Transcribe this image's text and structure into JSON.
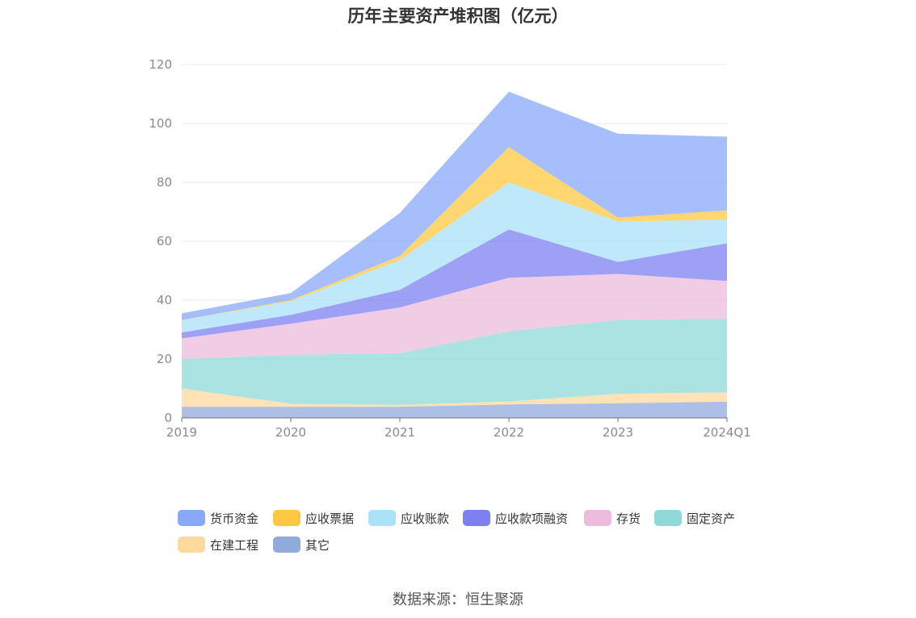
{
  "chart_data": {
    "type": "area",
    "stacked": true,
    "title": "历年主要资产堆积图（亿元）",
    "x": [
      "2019",
      "2020",
      "2021",
      "2022",
      "2023",
      "2024Q1"
    ],
    "ylim": [
      0,
      120
    ],
    "yticks": [
      "0",
      "20",
      "40",
      "60",
      "80",
      "100",
      "120"
    ],
    "grid": true,
    "legend_position": "bottom",
    "series": [
      {
        "name": "其它",
        "color": "#91aadc",
        "values": [
          3.8,
          3.8,
          3.8,
          4.6,
          5.0,
          5.5
        ]
      },
      {
        "name": "在建工程",
        "color": "#ffd99e",
        "values": [
          6.2,
          1.0,
          0.6,
          1.0,
          3.2,
          3.2
        ]
      },
      {
        "name": "固定资产",
        "color": "#8fd9d9",
        "values": [
          10.0,
          16.6,
          17.6,
          23.8,
          25.1,
          25.0
        ]
      },
      {
        "name": "存货",
        "color": "#ebbcdc",
        "values": [
          7.0,
          10.6,
          15.5,
          18.2,
          15.6,
          12.8
        ]
      },
      {
        "name": "应收款项融资",
        "color": "#7c80f0",
        "values": [
          2.0,
          3.0,
          6.0,
          16.4,
          4.1,
          12.8
        ]
      },
      {
        "name": "应收账款",
        "color": "#aae2f8",
        "values": [
          4.2,
          4.6,
          10.1,
          16.0,
          13.7,
          8.0
        ]
      },
      {
        "name": "应收票据",
        "color": "#ffc840",
        "values": [
          0.0,
          0.4,
          1.4,
          12.0,
          1.3,
          3.2
        ]
      },
      {
        "name": "货币资金",
        "color": "#88a8fa",
        "values": [
          2.3,
          2.4,
          14.6,
          18.8,
          28.5,
          25.0
        ]
      }
    ],
    "legend_order": [
      "货币资金",
      "应收票据",
      "应收账款",
      "应收款项融资",
      "存货",
      "固定资产",
      "在建工程",
      "其它"
    ]
  },
  "source_text": "数据来源：恒生聚源"
}
